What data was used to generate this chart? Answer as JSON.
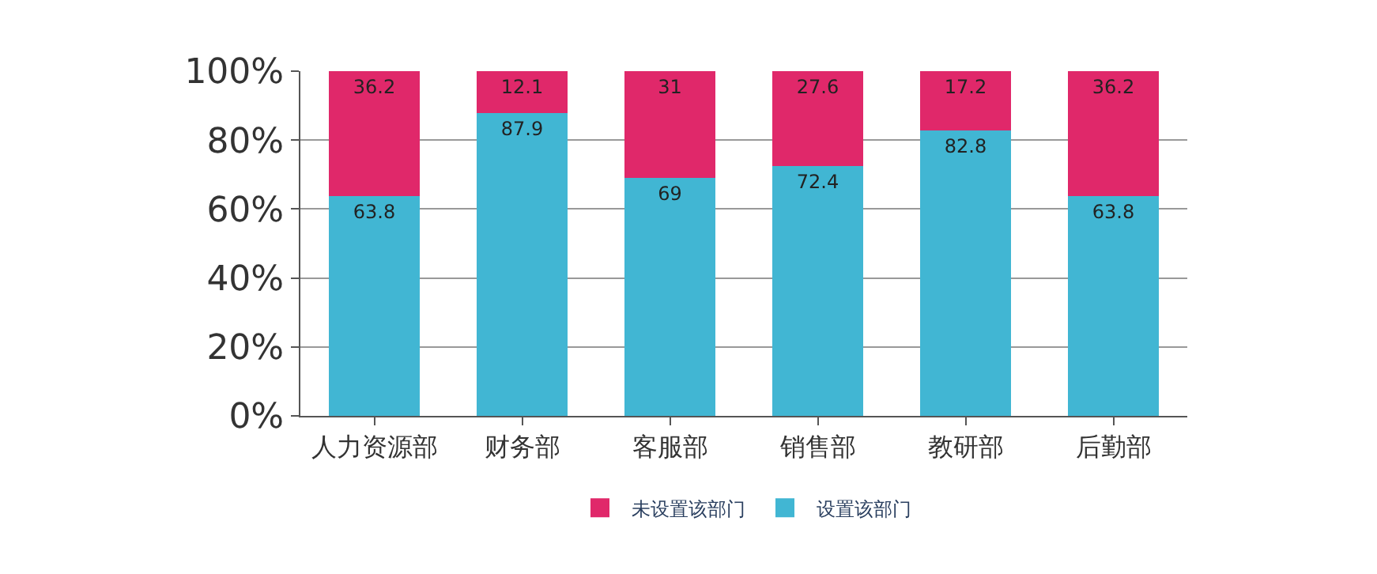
{
  "chart_data": {
    "type": "bar",
    "stacked": true,
    "categories": [
      "人力资源部",
      "财务部",
      "客服部",
      "销售部",
      "教研部",
      "后勤部"
    ],
    "series": [
      {
        "name": "设置该部门",
        "color": "#41b6d3",
        "values": [
          63.8,
          87.9,
          69,
          72.4,
          82.8,
          63.8
        ]
      },
      {
        "name": "未设置该部门",
        "color": "#e0286a",
        "values": [
          36.2,
          12.1,
          31,
          27.6,
          17.2,
          36.2
        ]
      }
    ],
    "ylim": [
      0,
      100
    ],
    "yticks": [
      {
        "value": 0,
        "label": "0%"
      },
      {
        "value": 20,
        "label": "20%"
      },
      {
        "value": 40,
        "label": "40%"
      },
      {
        "value": 60,
        "label": "60%"
      },
      {
        "value": 80,
        "label": "80%"
      },
      {
        "value": 100,
        "label": "100%"
      }
    ],
    "grid": "y",
    "legend": "bottom",
    "data_labels": true
  }
}
